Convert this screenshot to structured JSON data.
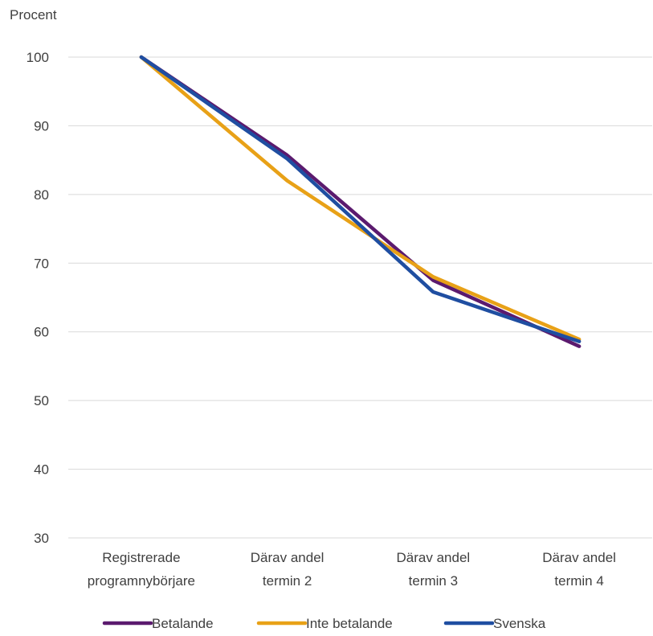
{
  "chart_data": {
    "type": "line",
    "ylabel": "Procent",
    "ylim": [
      30,
      100
    ],
    "yticks": [
      "100",
      "90",
      "80",
      "70",
      "60",
      "50",
      "40",
      "30"
    ],
    "categories": [
      [
        "Registrerade",
        "programnybörjare"
      ],
      [
        "Därav andel",
        "termin 2"
      ],
      [
        "Därav andel",
        "termin 3"
      ],
      [
        "Därav andel",
        "termin 4"
      ]
    ],
    "grid": true,
    "legend_position": "bottom",
    "series": [
      {
        "name": "Betalande",
        "color": "#5b1a6e",
        "values": [
          100,
          85.7,
          67.5,
          57.9
        ]
      },
      {
        "name": "Inte betalande",
        "color": "#e8a117",
        "values": [
          100,
          82.0,
          68.0,
          58.9
        ]
      },
      {
        "name": "Svenska",
        "color": "#1f4ea1",
        "values": [
          100,
          85.2,
          65.8,
          58.6
        ]
      }
    ]
  }
}
